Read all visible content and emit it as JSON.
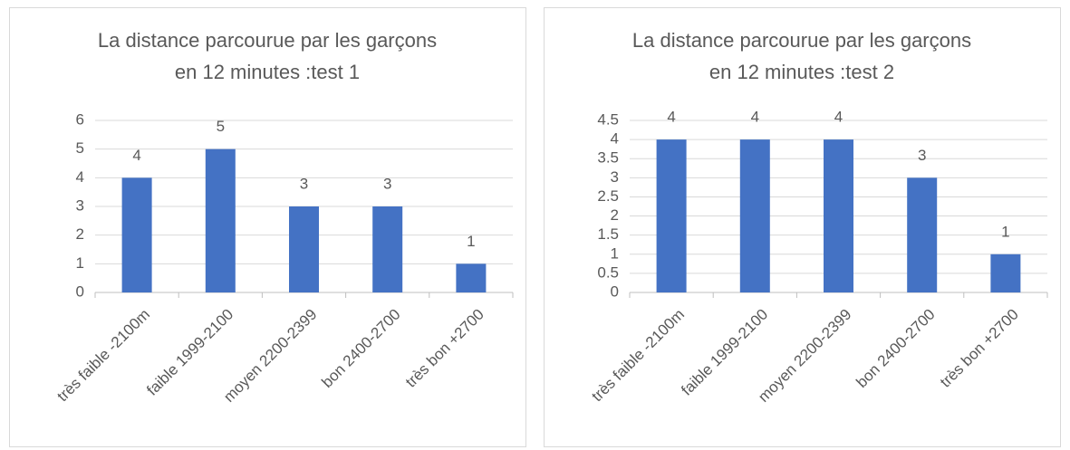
{
  "chart_data": [
    {
      "type": "bar",
      "title": [
        "La distance parcourue par les garçons",
        "en 12 minutes :test 1"
      ],
      "categories": [
        "très faible -2100m",
        "faible  1999-2100",
        "moyen 2200-2399",
        "bon 2400-2700",
        "très bon +2700"
      ],
      "values": [
        4,
        5,
        3,
        3,
        1
      ],
      "color": "#4472c4",
      "ylim": [
        0,
        6
      ],
      "yticks": [
        0,
        1,
        2,
        3,
        4,
        5,
        6
      ],
      "grid": true
    },
    {
      "type": "bar",
      "title": [
        "La distance parcourue par les garçons",
        "en 12 minutes :test 2"
      ],
      "categories": [
        "très faible -2100m",
        "faible  1999-2100",
        "moyen 2200-2399",
        "bon 2400-2700",
        "très bon +2700"
      ],
      "values": [
        4,
        4,
        4,
        3,
        1
      ],
      "color": "#4472c4",
      "ylim": [
        0,
        4.5
      ],
      "yticks": [
        0,
        0.5,
        1,
        1.5,
        2,
        2.5,
        3,
        3.5,
        4,
        4.5
      ],
      "grid": true
    }
  ]
}
